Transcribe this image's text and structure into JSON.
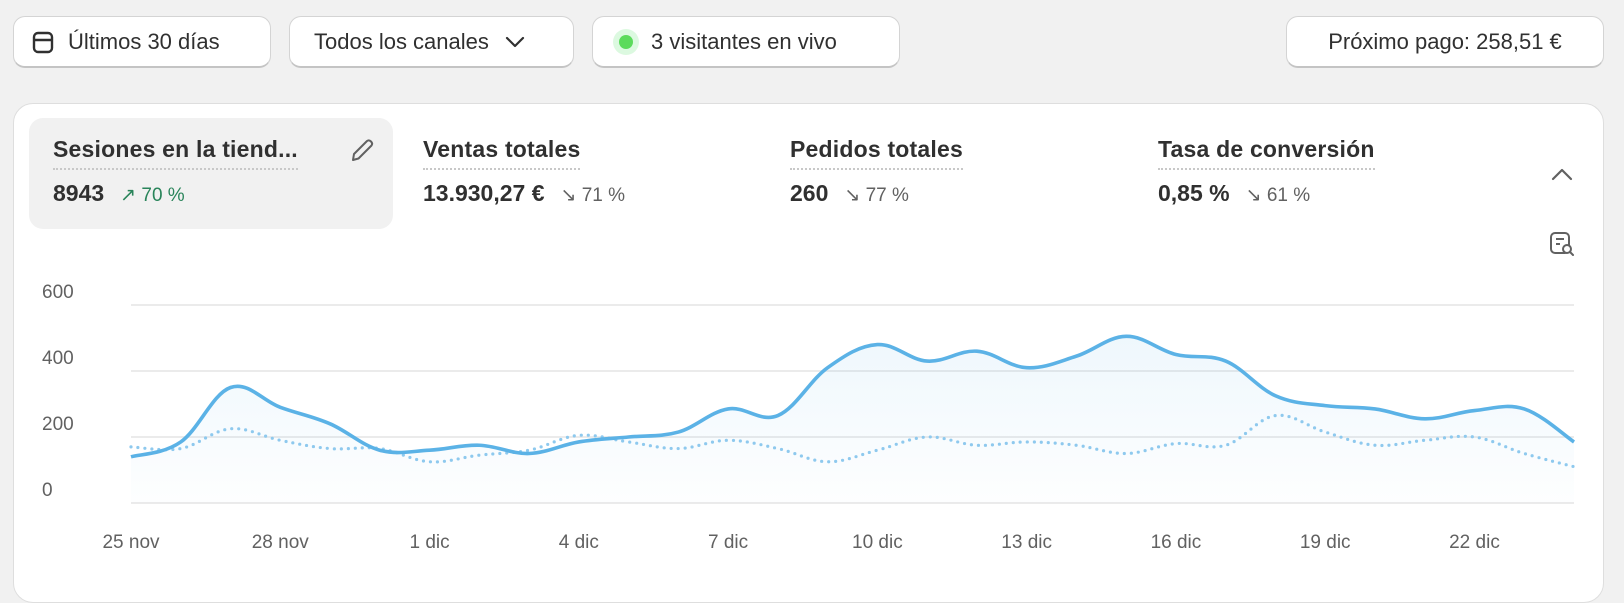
{
  "toolbar": {
    "date_range": "Últimos 30 días",
    "channels": "Todos los canales",
    "live_visitors": "3 visitantes en vivo",
    "next_payout": "Próximo pago: 258,51 €"
  },
  "metrics": [
    {
      "title": "Sesiones en la tiend...",
      "value": "8943",
      "delta": "70 %",
      "direction": "up",
      "selected": true
    },
    {
      "title": "Ventas totales",
      "value": "13.930,27 €",
      "delta": "71 %",
      "direction": "down"
    },
    {
      "title": "Pedidos totales",
      "value": "260",
      "delta": "77 %",
      "direction": "down"
    },
    {
      "title": "Tasa de conversión",
      "value": "0,85 %",
      "delta": "61 %",
      "direction": "down"
    }
  ],
  "colors": {
    "primary_line": "#5bb2e6",
    "comparison_line": "#8ec9ee",
    "positive": "#29845a",
    "background": "#f1f1f1"
  },
  "chart_data": {
    "type": "line",
    "ylim": [
      0,
      600
    ],
    "y_ticks": [
      "600",
      "400",
      "200",
      "0"
    ],
    "x_tick_labels": [
      "25 nov",
      "28 nov",
      "1 dic",
      "4 dic",
      "7 dic",
      "10 dic",
      "13 dic",
      "16 dic",
      "19 dic",
      "22 dic"
    ],
    "x_tick_every_days": 3,
    "grid": true,
    "series": [
      {
        "style": "solid-area",
        "values": [
          140,
          185,
          350,
          290,
          240,
          160,
          160,
          175,
          150,
          185,
          200,
          215,
          285,
          265,
          410,
          480,
          430,
          460,
          410,
          445,
          505,
          450,
          430,
          325,
          295,
          285,
          255,
          280,
          285,
          185
        ]
      },
      {
        "style": "dotted",
        "values": [
          170,
          165,
          225,
          190,
          165,
          165,
          125,
          145,
          160,
          205,
          185,
          165,
          190,
          165,
          125,
          160,
          200,
          175,
          185,
          175,
          150,
          180,
          175,
          265,
          215,
          175,
          190,
          200,
          150,
          110
        ]
      }
    ]
  }
}
